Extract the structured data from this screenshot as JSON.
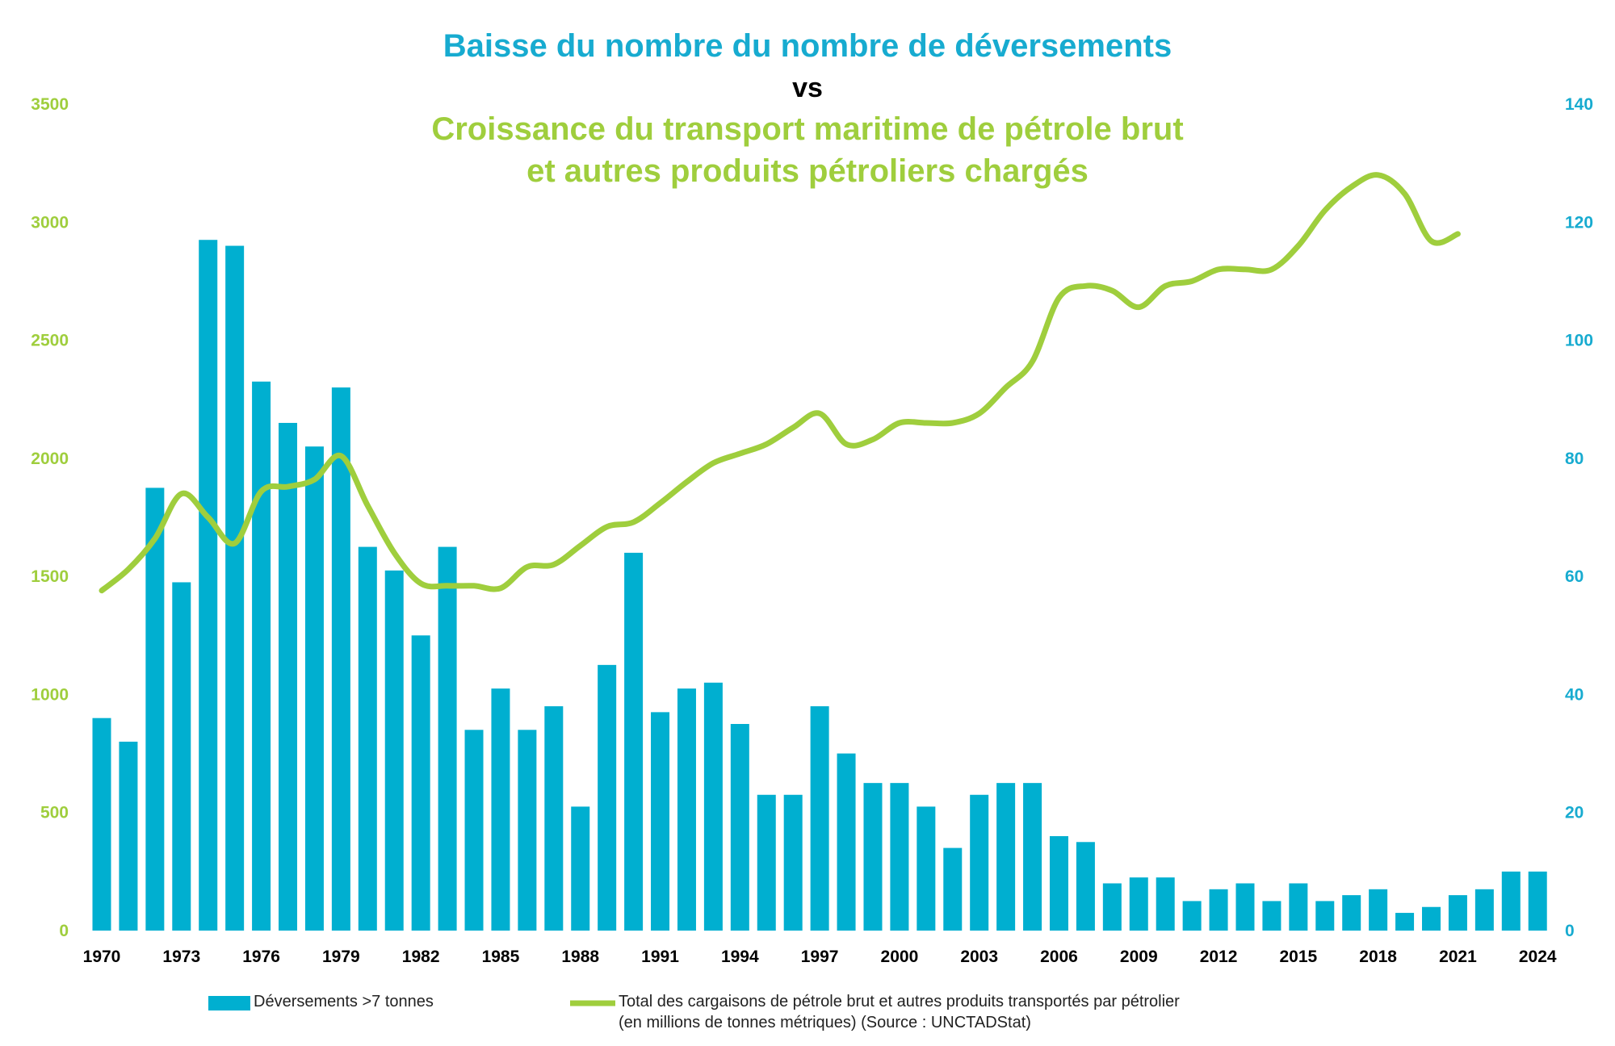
{
  "title": {
    "line1": "Baisse du nombre du nombre de déversements",
    "line2": "vs",
    "line3a": "Croissance du transport maritime de pétrole brut",
    "line3b": "et autres produits pétroliers chargés"
  },
  "colors": {
    "bars": "#00afd0",
    "line": "#9fce3d",
    "title_blue": "#17abd0",
    "title_green": "#9fce3d",
    "left_axis": "#9fce3d",
    "right_axis": "#17abd0"
  },
  "legend": {
    "bars_label": "Déversements >7 tonnes",
    "line_label_1": "Total des cargaisons de pétrole brut et autres produits transportés par pétrolier",
    "line_label_2": "(en millions de tonnes métriques) (Source : UNCTADStat)"
  },
  "chart_data": {
    "type": "bar+line",
    "x_tick_labels": [
      "1970",
      "1973",
      "1976",
      "1979",
      "1982",
      "1985",
      "1988",
      "1991",
      "1994",
      "1997",
      "2000",
      "2003",
      "2006",
      "2009",
      "2012",
      "2015",
      "2018",
      "2021",
      "2024"
    ],
    "left_axis": {
      "ticks": [
        0,
        500,
        1000,
        1500,
        2000,
        2500,
        3000,
        3500
      ],
      "ylim": [
        0,
        3500
      ]
    },
    "right_axis": {
      "ticks": [
        0,
        20,
        40,
        60,
        80,
        100,
        120,
        140
      ],
      "ylim": [
        0,
        140
      ]
    },
    "bars": {
      "name": "Déversements >7 tonnes",
      "axis": "right",
      "years": [
        1970,
        1971,
        1972,
        1973,
        1974,
        1975,
        1976,
        1977,
        1978,
        1979,
        1980,
        1981,
        1982,
        1983,
        1984,
        1985,
        1986,
        1987,
        1988,
        1989,
        1990,
        1991,
        1992,
        1993,
        1994,
        1995,
        1996,
        1997,
        1998,
        1999,
        2000,
        2001,
        2002,
        2003,
        2004,
        2005,
        2006,
        2007,
        2008,
        2009,
        2010,
        2011,
        2012,
        2013,
        2014,
        2015,
        2016,
        2017,
        2018,
        2019,
        2020,
        2021,
        2022,
        2023,
        2024
      ],
      "values": [
        36,
        32,
        75,
        59,
        117,
        116,
        93,
        86,
        82,
        92,
        65,
        61,
        50,
        65,
        34,
        41,
        34,
        38,
        21,
        45,
        64,
        37,
        41,
        42,
        35,
        23,
        23,
        38,
        30,
        25,
        25,
        21,
        14,
        23,
        25,
        25,
        16,
        15,
        8,
        9,
        9,
        5,
        7,
        8,
        5,
        8,
        5,
        6,
        7,
        3,
        4,
        6,
        7,
        10,
        10
      ]
    },
    "line": {
      "name": "Total des cargaisons de pétrole brut et autres produits transportés par pétrolier (en millions de tonnes métriques) (Source : UNCTADStat)",
      "axis": "left",
      "years": [
        1970,
        1971,
        1972,
        1973,
        1974,
        1975,
        1976,
        1977,
        1978,
        1979,
        1980,
        1981,
        1982,
        1983,
        1984,
        1985,
        1986,
        1987,
        1988,
        1989,
        1990,
        1991,
        1992,
        1993,
        1994,
        1995,
        1996,
        1997,
        1998,
        1999,
        2000,
        2001,
        2002,
        2003,
        2004,
        2005,
        2006,
        2007,
        2008,
        2009,
        2010,
        2011,
        2012,
        2013,
        2014,
        2015,
        2016,
        2017,
        2018,
        2019,
        2020,
        2021
      ],
      "values": [
        1440,
        1530,
        1660,
        1850,
        1750,
        1640,
        1860,
        1880,
        1910,
        2010,
        1800,
        1600,
        1470,
        1460,
        1460,
        1450,
        1540,
        1550,
        1630,
        1710,
        1730,
        1810,
        1900,
        1980,
        2020,
        2060,
        2130,
        2190,
        2060,
        2080,
        2150,
        2150,
        2150,
        2190,
        2300,
        2410,
        2680,
        2730,
        2710,
        2640,
        2730,
        2750,
        2800,
        2800,
        2800,
        2900,
        3050,
        3150,
        3200,
        3120,
        2920,
        2950
      ]
    }
  }
}
